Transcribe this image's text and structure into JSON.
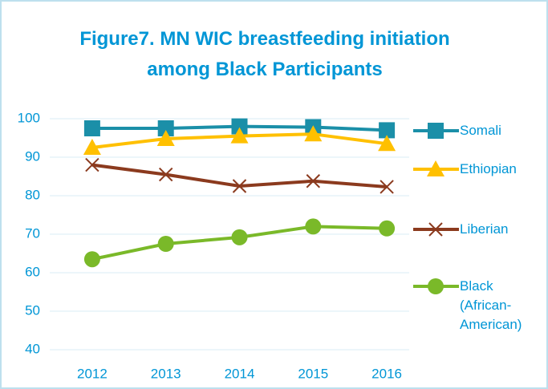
{
  "chart_data": {
    "type": "line",
    "title": "Figure7. MN WIC breastfeeding initiation among Black Participants",
    "categories": [
      "2012",
      "2013",
      "2014",
      "2015",
      "2016"
    ],
    "series": [
      {
        "name": "Somali",
        "color": "#1b8fa8",
        "marker": "square",
        "values": [
          97.5,
          97.5,
          98,
          97.8,
          97
        ]
      },
      {
        "name": "Ethiopian",
        "color": "#ffc000",
        "marker": "triangle",
        "values": [
          92.5,
          94.8,
          95.5,
          96,
          93.5
        ]
      },
      {
        "name": "Liberian",
        "color": "#8b3a1e",
        "marker": "x",
        "values": [
          88,
          85.5,
          82.5,
          83.8,
          82.3
        ]
      },
      {
        "name": "Black (African-American)",
        "color": "#7ab929",
        "marker": "circle",
        "values": [
          63.5,
          67.5,
          69.2,
          72,
          71.5
        ]
      }
    ],
    "ylim": [
      40,
      100
    ],
    "yticks": [
      40,
      50,
      60,
      70,
      80,
      90,
      100
    ],
    "grid": true,
    "legend": "right"
  }
}
